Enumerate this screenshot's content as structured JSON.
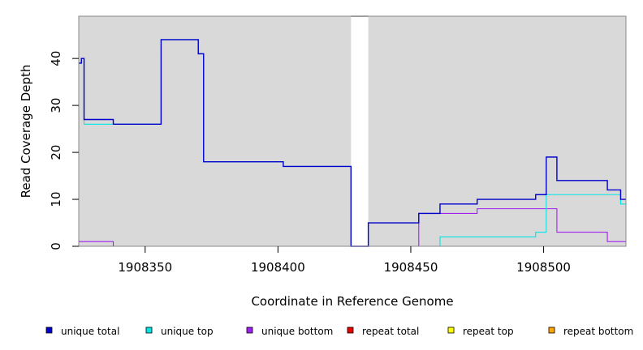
{
  "chart_data": {
    "type": "line",
    "title": "",
    "xlabel": "Coordinate in Reference Genome",
    "ylabel": "Read Coverage Depth",
    "xlim": [
      1908325,
      1908531
    ],
    "ylim": [
      0,
      49
    ],
    "x_ticks": [
      1908350,
      1908400,
      1908450,
      1908500
    ],
    "x_tick_labels": [
      "1908350",
      "1908400",
      "1908450",
      "1908500"
    ],
    "y_ticks": [
      0,
      10,
      20,
      30,
      40
    ],
    "y_tick_labels": [
      "0",
      "10",
      "20",
      "30",
      "40"
    ],
    "background_color": "#d9d9d9",
    "gap_regions": [
      {
        "x_start": 1908427.5,
        "x_end": 1908434
      }
    ],
    "legend_placement": "bottom",
    "series": [
      {
        "name": "unique total",
        "color": "#0000cc",
        "steps": [
          [
            1908325,
            39
          ],
          [
            1908326,
            40
          ],
          [
            1908327,
            27
          ],
          [
            1908338,
            26
          ],
          [
            1908356,
            44
          ],
          [
            1908370,
            41
          ],
          [
            1908372,
            18
          ],
          [
            1908402,
            17
          ],
          [
            1908427.5,
            0
          ],
          [
            1908434,
            5
          ],
          [
            1908453,
            7
          ],
          [
            1908461,
            9
          ],
          [
            1908475,
            10
          ],
          [
            1908497,
            11
          ],
          [
            1908501,
            19
          ],
          [
            1908505,
            14
          ],
          [
            1908524,
            12
          ],
          [
            1908529,
            10
          ],
          [
            1908531,
            10
          ]
        ]
      },
      {
        "name": "unique top",
        "color": "#00e5e5",
        "steps": [
          [
            1908325,
            39
          ],
          [
            1908326,
            40
          ],
          [
            1908327,
            26
          ],
          [
            1908338,
            26
          ],
          [
            1908356,
            44
          ],
          [
            1908370,
            41
          ],
          [
            1908372,
            18
          ],
          [
            1908402,
            17
          ],
          [
            1908427.5,
            0
          ],
          [
            1908434,
            0
          ],
          [
            1908461,
            2
          ],
          [
            1908497,
            3
          ],
          [
            1908501,
            11
          ],
          [
            1908529,
            9
          ],
          [
            1908531,
            9
          ]
        ]
      },
      {
        "name": "unique bottom",
        "color": "#a020f0",
        "steps": [
          [
            1908325,
            1
          ],
          [
            1908338,
            0
          ],
          [
            1908427.5,
            0
          ],
          [
            1908434,
            0
          ],
          [
            1908453,
            7
          ],
          [
            1908475,
            8
          ],
          [
            1908505,
            3
          ],
          [
            1908524,
            1
          ],
          [
            1908531,
            1
          ]
        ]
      },
      {
        "name": "repeat total",
        "color": "#ee0000",
        "steps": [
          [
            1908325,
            0
          ],
          [
            1908531,
            0
          ]
        ]
      },
      {
        "name": "repeat top",
        "color": "#ffff00",
        "steps": [
          [
            1908325,
            0
          ],
          [
            1908531,
            0
          ]
        ]
      },
      {
        "name": "repeat bottom",
        "color": "#ffa500",
        "steps": [
          [
            1908325,
            0
          ],
          [
            1908531,
            0
          ]
        ]
      }
    ]
  }
}
